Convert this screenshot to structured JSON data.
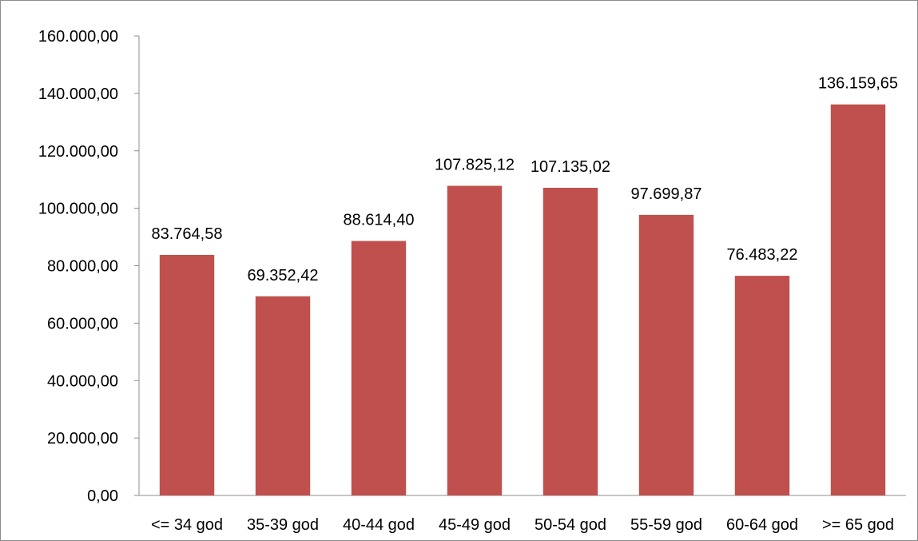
{
  "chart_data": {
    "type": "bar",
    "title": "",
    "xlabel": "",
    "ylabel": "",
    "categories": [
      "<= 34 god",
      "35-39 god",
      "40-44 god",
      "45-49 god",
      "50-54 god",
      "55-59 god",
      "60-64 god",
      ">= 65 god"
    ],
    "values": [
      83764.58,
      69352.42,
      88614.4,
      107825.12,
      107135.02,
      97699.87,
      76483.22,
      136159.65
    ],
    "value_labels": [
      "83.764,58",
      "69.352,42",
      "88.614,40",
      "107.825,12",
      "107.135,02",
      "97.699,87",
      "76.483,22",
      "136.159,65"
    ],
    "ylim": [
      0,
      160000
    ],
    "y_ticks": [
      0,
      20000,
      40000,
      60000,
      80000,
      100000,
      120000,
      140000,
      160000
    ],
    "y_tick_labels": [
      "0,00",
      "20.000,00",
      "40.000,00",
      "60.000,00",
      "80.000,00",
      "100.000,00",
      "120.000,00",
      "140.000,00",
      "160.000,00"
    ],
    "grid": false,
    "legend": "none",
    "bar_color": "#c0504d",
    "axis_color": "#8c8c8c"
  }
}
